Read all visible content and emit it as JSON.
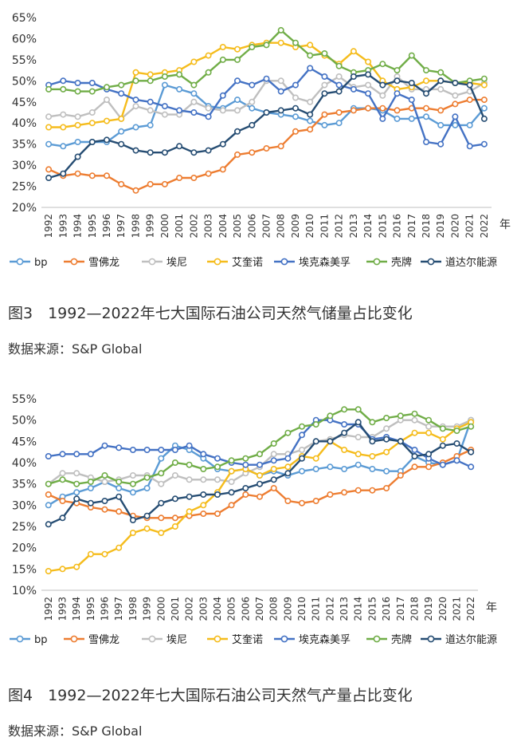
{
  "colors": {
    "bp": "#5b9bd5",
    "chevron": "#ed7d31",
    "eni": "#bfbfbf",
    "equinor": "#f5bc1c",
    "exxonmobil": "#4472c4",
    "shell": "#70ad47",
    "total": "#264d73"
  },
  "chart_data": [
    {
      "type": "line",
      "title": "图3　1992—2022年七大国际石油公司天然气储量占比变化",
      "source": "数据来源：S&P Global",
      "xlabel": "年",
      "ylabel": "",
      "ylim": [
        20,
        65
      ],
      "yticks": [
        20,
        25,
        30,
        35,
        40,
        45,
        50,
        55,
        60,
        65
      ],
      "ytick_suffix": "%",
      "x": [
        1992,
        1993,
        1994,
        1995,
        1996,
        1997,
        1998,
        1999,
        2000,
        2001,
        2002,
        2003,
        2004,
        2005,
        2006,
        2007,
        2008,
        2009,
        2010,
        2011,
        2012,
        2013,
        2014,
        2015,
        2016,
        2017,
        2018,
        2019,
        2020,
        2021,
        2022
      ],
      "series": [
        {
          "key": "bp",
          "name": "bp",
          "values": [
            35,
            34.5,
            35.5,
            35.5,
            35.5,
            38,
            39,
            39.5,
            49,
            48,
            47,
            44,
            43.5,
            45.5,
            43.5,
            42.5,
            42,
            41.5,
            40.5,
            39.5,
            40,
            43.5,
            43.5,
            43,
            41,
            41,
            41.5,
            39.5,
            39.5,
            39.5,
            43.5
          ]
        },
        {
          "key": "chevron",
          "name": "雪佛龙",
          "values": [
            29,
            27.5,
            28,
            27.5,
            27.5,
            25.5,
            24,
            25.5,
            25.5,
            27,
            27,
            28,
            29,
            32.5,
            33,
            34,
            34.5,
            38,
            38.5,
            42,
            42.5,
            43,
            43.5,
            43.5,
            43,
            43.5,
            43.5,
            43,
            44.5,
            45.5,
            45.5
          ]
        },
        {
          "key": "eni",
          "name": "埃尼",
          "values": [
            41.5,
            42,
            41.5,
            42.5,
            45.5,
            41,
            44,
            43,
            42,
            42,
            45,
            43.5,
            43,
            43,
            45,
            50,
            50,
            46,
            45,
            49,
            51,
            48.5,
            49,
            46.5,
            51,
            48,
            48,
            48,
            46.5,
            47.5,
            49.5
          ]
        },
        {
          "key": "equinor",
          "name": "艾奎诺",
          "values": [
            39,
            39,
            39.5,
            40,
            40.5,
            41,
            52,
            51.5,
            52,
            52.5,
            54.5,
            56,
            58,
            57.5,
            58.5,
            59,
            59,
            58,
            58.5,
            56,
            54,
            57,
            54.5,
            50,
            48,
            48.5,
            50,
            50,
            49.5,
            49.5,
            49
          ]
        },
        {
          "key": "exxonmobil",
          "name": "埃克森美孚",
          "values": [
            49,
            50,
            49.5,
            49.5,
            48,
            47,
            45.5,
            45,
            44,
            43,
            42.5,
            41.5,
            46.5,
            50,
            49,
            50.5,
            47.5,
            49,
            53,
            51,
            49,
            48,
            47,
            41,
            47,
            45.5,
            35.5,
            35,
            41.5,
            34.5,
            35
          ]
        },
        {
          "key": "shell",
          "name": "壳牌",
          "values": [
            48,
            48,
            47.5,
            47.5,
            48.5,
            49,
            50,
            50,
            51,
            51.5,
            49,
            52,
            55,
            55,
            58,
            58.5,
            62,
            59,
            56,
            56.5,
            53.5,
            52,
            52.5,
            54,
            52.5,
            56,
            52.5,
            52,
            49.5,
            50,
            50.5
          ]
        },
        {
          "key": "total",
          "name": "道达尔能源",
          "values": [
            27,
            28,
            32,
            35.5,
            36,
            35,
            33.5,
            33,
            33,
            34.5,
            33,
            33.5,
            35,
            38,
            39.5,
            42.5,
            43,
            43.5,
            42,
            47,
            47.5,
            51,
            51.5,
            49,
            50,
            49.5,
            47,
            50,
            49.5,
            49,
            41
          ]
        }
      ]
    },
    {
      "type": "line",
      "title": "图4　1992—2022年七大国际石油公司天然气产量占比变化",
      "source": "数据来源：S&P Global",
      "xlabel": "年",
      "ylabel": "",
      "ylim": [
        10,
        55
      ],
      "yticks": [
        10,
        15,
        20,
        25,
        30,
        35,
        40,
        45,
        50,
        55
      ],
      "ytick_suffix": "%",
      "x": [
        1992,
        1993,
        1994,
        1995,
        1996,
        1997,
        1998,
        1999,
        2000,
        2001,
        2002,
        2003,
        2004,
        2005,
        2006,
        2007,
        2008,
        2009,
        2010,
        2011,
        2012,
        2013,
        2014,
        2015,
        2016,
        2017,
        2018,
        2019,
        2020,
        2021,
        2022
      ],
      "series": [
        {
          "key": "bp",
          "name": "bp",
          "values": [
            30,
            32,
            33,
            34,
            35.5,
            34,
            33,
            34,
            41,
            44,
            43,
            41,
            38.5,
            38,
            38.5,
            37,
            38,
            37,
            38,
            38.5,
            39,
            38.5,
            39.5,
            38.5,
            38,
            38,
            41.5,
            40,
            39.5,
            40.5,
            50
          ]
        },
        {
          "key": "chevron",
          "name": "雪佛龙",
          "values": [
            32.5,
            31,
            30.5,
            29.5,
            29,
            28.5,
            27.5,
            27,
            27,
            27,
            27.5,
            28,
            28,
            30,
            32.5,
            32,
            34,
            31,
            30.5,
            31,
            32.5,
            33,
            33.5,
            33.5,
            34,
            37,
            39,
            39,
            40,
            41.5,
            43
          ]
        },
        {
          "key": "eni",
          "name": "埃尼",
          "values": [
            35,
            37.5,
            37.5,
            36.5,
            35.5,
            36,
            37,
            37,
            35,
            37,
            36,
            36,
            36,
            35.5,
            37.5,
            39,
            42,
            42,
            43,
            45,
            45.5,
            46.5,
            46,
            46,
            48,
            50,
            50,
            48.5,
            48.5,
            48.5,
            50
          ]
        },
        {
          "key": "equinor",
          "name": "艾奎诺",
          "values": [
            14.5,
            15,
            15.5,
            18.5,
            18.5,
            20,
            23.5,
            24.5,
            23.5,
            25,
            28.5,
            30,
            33,
            38,
            38.5,
            37,
            38.5,
            39,
            41.5,
            41,
            45,
            43,
            42,
            41.5,
            42.5,
            45,
            47,
            47,
            45.5,
            48,
            49.5
          ]
        },
        {
          "key": "exxonmobil",
          "name": "埃克森美孚",
          "values": [
            41.5,
            42,
            42,
            42,
            44,
            43.5,
            43,
            43,
            43,
            43,
            44,
            42,
            41,
            40,
            39.5,
            39.5,
            40.5,
            41,
            46.5,
            50,
            50,
            49,
            49,
            45.5,
            46,
            45,
            43,
            41,
            39.5,
            40.5,
            39
          ]
        },
        {
          "key": "shell",
          "name": "壳牌",
          "values": [
            35,
            36,
            35,
            35.5,
            37,
            35.5,
            35,
            36.5,
            37.5,
            40,
            39.5,
            38.5,
            39,
            40.5,
            41,
            42,
            44.5,
            47,
            48.5,
            49,
            51,
            52.5,
            52.5,
            49.5,
            50.5,
            51,
            51.5,
            50,
            48,
            47.5,
            48.5
          ]
        },
        {
          "key": "total",
          "name": "道达尔能源",
          "values": [
            25.5,
            27,
            31.5,
            30.5,
            31,
            32,
            26.5,
            27.5,
            30.5,
            31.5,
            32,
            32.5,
            32.5,
            33,
            34,
            35,
            36,
            37.5,
            41,
            45,
            45,
            47,
            49.5,
            45,
            45.5,
            45,
            41.5,
            42,
            44,
            44.5,
            42.5
          ]
        }
      ]
    }
  ]
}
